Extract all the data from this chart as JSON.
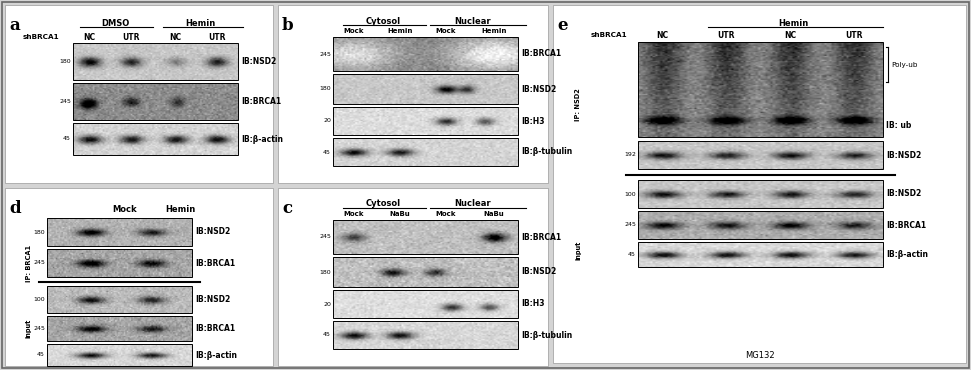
{
  "background_color": "#d4d4d4",
  "panel_a": {
    "label": "a",
    "group_labels": [
      "DMSO",
      "Hemin"
    ],
    "col_labels": [
      "NC",
      "UTR",
      "NC",
      "UTR"
    ],
    "row_label": "shBRCA1",
    "blot_labels": [
      "IB:NSD2",
      "IB:BRCA1",
      "IB:β-actin"
    ],
    "markers": [
      "180",
      "245",
      "45"
    ]
  },
  "panel_b": {
    "label": "b",
    "group_labels": [
      "Cytosol",
      "Nuclear"
    ],
    "col_labels": [
      "Mock",
      "Hemin",
      "Mock",
      "Hemin"
    ],
    "blot_labels": [
      "IB:BRCA1",
      "IB:NSD2",
      "IB:H3",
      "IB:β-tubulin"
    ],
    "markers": [
      "245",
      "180",
      "20",
      "45"
    ]
  },
  "panel_c": {
    "label": "c",
    "group_labels": [
      "Cytosol",
      "Nuclear"
    ],
    "col_labels": [
      "Mock",
      "NaBu",
      "Mock",
      "NaBu"
    ],
    "blot_labels": [
      "IB:BRCA1",
      "IB:NSD2",
      "IB:H3",
      "IB:β-tubulin"
    ],
    "markers": [
      "245",
      "180",
      "20",
      "45"
    ]
  },
  "panel_d": {
    "label": "d",
    "group_labels": [
      "Mock",
      "Hemin"
    ],
    "ip_label": "IP: BRCA1",
    "input_label": "input",
    "ip_blot_labels": [
      "IB:NSD2",
      "IB:BRCA1"
    ],
    "ip_markers": [
      "180",
      "245"
    ],
    "input_blot_labels": [
      "IB:NSD2",
      "IB:BRCA1",
      "IB:β-actin"
    ],
    "input_markers": [
      "100",
      "245",
      "45"
    ]
  },
  "panel_e": {
    "label": "e",
    "group_label": "Hemin",
    "col_labels": [
      "NC",
      "UTR",
      "NC",
      "UTR"
    ],
    "row_label": "shBRCA1",
    "ip_label": "IP: NSD2",
    "input_label": "input",
    "poly_ub_label": "Poly-ub",
    "ip_blot_labels": [
      "IB: ub",
      "IB:NSD2"
    ],
    "input_blot_labels": [
      "IB:NSD2",
      "IB:BRCA1",
      "IB:β-actin"
    ],
    "input_markers": [
      "100",
      "245",
      "45"
    ],
    "footer": "MG132"
  }
}
